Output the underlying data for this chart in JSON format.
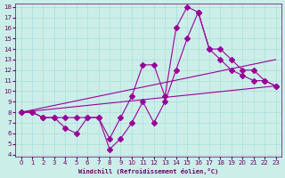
{
  "xlabel": "Windchill (Refroidissement éolien,°C)",
  "bg_color": "#cceee8",
  "line_color": "#990099",
  "grid_color": "#aadddd",
  "xmin": 0,
  "xmax": 23,
  "ymin": 4,
  "ymax": 18,
  "line1_x": [
    0,
    1,
    2,
    3,
    4,
    5,
    6,
    7,
    8,
    9,
    10,
    11,
    12,
    13,
    14,
    15,
    16,
    17,
    18,
    19,
    20,
    21,
    22,
    23
  ],
  "line1_y": [
    8,
    8,
    7.5,
    7.5,
    7.5,
    7.5,
    7.5,
    7.5,
    5.5,
    7.5,
    9.5,
    12.5,
    12.5,
    9.5,
    16,
    18,
    17.5,
    14,
    13,
    12,
    11.5,
    11,
    11,
    10.5
  ],
  "line2_x": [
    0,
    1,
    2,
    3,
    4,
    5,
    6,
    7,
    8,
    9,
    10,
    11,
    12,
    13,
    14,
    15,
    16,
    17,
    18,
    19,
    20,
    21,
    22,
    23
  ],
  "line2_y": [
    8,
    8,
    7.5,
    7.5,
    6.5,
    6.0,
    7.5,
    7.5,
    4.5,
    5.5,
    7,
    9,
    7,
    9,
    12,
    15,
    17.5,
    14,
    14,
    13,
    12,
    12,
    11,
    10.5
  ],
  "line3_x": [
    0,
    23
  ],
  "line3_y": [
    8,
    10.5
  ],
  "line4_x": [
    0,
    23
  ],
  "line4_y": [
    8,
    13
  ],
  "font_color": "#660066"
}
